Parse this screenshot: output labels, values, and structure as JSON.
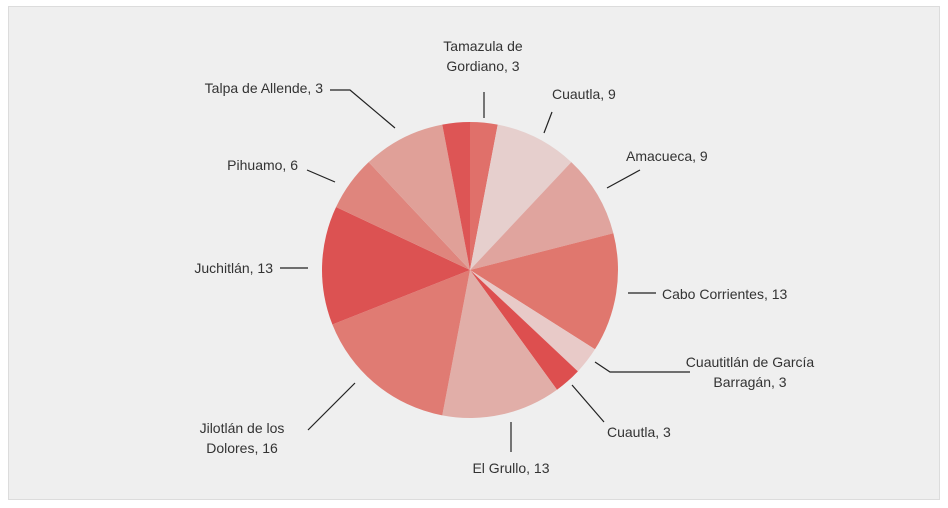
{
  "chart_data": {
    "type": "pie",
    "categories": [
      "Tamazula de Gordiano",
      "Cuautla",
      "Amacueca",
      "Cabo Corrientes",
      "Cuautitlán de García Barragán",
      "Cuautla",
      "El Grullo",
      "Jilotlán de los Dolores",
      "Juchitlán",
      "Pihuamo",
      null,
      "Talpa de Allende"
    ],
    "values": [
      3,
      9,
      9,
      13,
      3,
      3,
      13,
      16,
      13,
      6,
      9,
      3
    ],
    "value_labels": [
      "Tamazula de Gordiano, 3",
      "Cuautla, 9",
      "Amacueca, 9",
      "Cabo Corrientes, 13",
      "Cuautitlán de García Barragán, 3",
      "Cuautla, 3",
      "El Grullo, 13",
      "Jilotlán de los Dolores, 16",
      "Juchitlán, 13",
      "Pihuamo, 6",
      null,
      "Talpa de Allende, 3"
    ],
    "colors": [
      "#e0706a",
      "#e6cfcd",
      "#e0a49e",
      "#e0776e",
      "#e8cac8",
      "#dd4f4f",
      "#e1aea8",
      "#e07b73",
      "#dc5252",
      "#df857d",
      "#e0a098",
      "#dd5555"
    ]
  }
}
